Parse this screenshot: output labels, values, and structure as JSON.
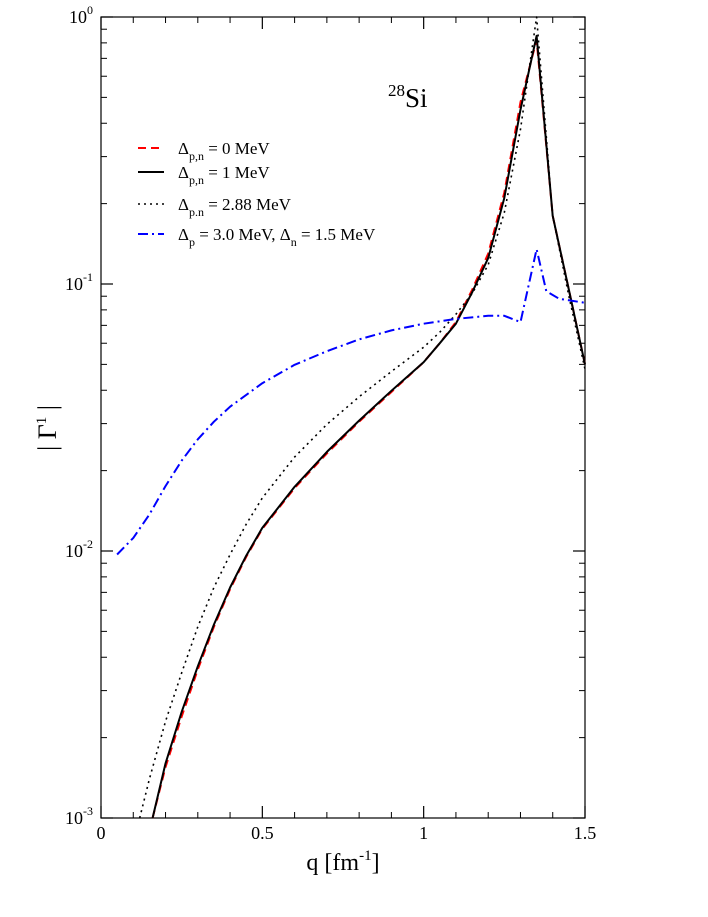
{
  "chart_data": {
    "type": "line",
    "title": "",
    "annotation": {
      "mass": "28",
      "element": "Si"
    },
    "xlabel": {
      "main": "q [fm",
      "sup": "-1",
      "close": "]"
    },
    "ylabel": {
      "main": "| Γ",
      "sup": "1",
      "close": " |"
    },
    "xlim": [
      0,
      1.5
    ],
    "ylim": [
      0.001,
      1
    ],
    "yscale": "log",
    "grid": false,
    "legend_position": "top-left",
    "x_ticks": [
      {
        "value": 0,
        "label": "0"
      },
      {
        "value": 0.5,
        "label": "0.5"
      },
      {
        "value": 1,
        "label": "1"
      },
      {
        "value": 1.5,
        "label": "1.5"
      }
    ],
    "y_ticks": [
      {
        "value": 0.001,
        "base": "10",
        "exp": "-3"
      },
      {
        "value": 0.01,
        "base": "10",
        "exp": "-2"
      },
      {
        "value": 0.1,
        "base": "10",
        "exp": "-1"
      },
      {
        "value": 1,
        "base": "10",
        "exp": "0"
      }
    ],
    "series": [
      {
        "legend": [
          {
            "t": "Δ"
          },
          {
            "t": "p,n",
            "sub": true
          },
          {
            "t": " = 0 MeV"
          }
        ],
        "color": "#ff0000",
        "dash": "8,5",
        "width": 2,
        "x": [
          0.16,
          0.2,
          0.25,
          0.3,
          0.35,
          0.4,
          0.45,
          0.5,
          0.6,
          0.7,
          0.8,
          0.9,
          1.0,
          1.05,
          1.1,
          1.15,
          1.2,
          1.25,
          1.3,
          1.35,
          1.4,
          1.45,
          1.5
        ],
        "y": [
          0.001,
          0.00155,
          0.0024,
          0.0036,
          0.0052,
          0.0072,
          0.0095,
          0.0121,
          0.0172,
          0.0232,
          0.0305,
          0.0394,
          0.051,
          0.06,
          0.072,
          0.095,
          0.13,
          0.22,
          0.48,
          0.82,
          0.18,
          0.095,
          0.05
        ]
      },
      {
        "legend": [
          {
            "t": "Δ"
          },
          {
            "t": "p,n",
            "sub": true
          },
          {
            "t": " = 1 MeV"
          }
        ],
        "color": "#000000",
        "dash": "",
        "width": 2,
        "x": [
          0.16,
          0.2,
          0.25,
          0.3,
          0.35,
          0.4,
          0.45,
          0.5,
          0.6,
          0.7,
          0.8,
          0.9,
          1.0,
          1.05,
          1.1,
          1.15,
          1.2,
          1.25,
          1.3,
          1.35,
          1.4,
          1.45,
          1.5
        ],
        "y": [
          0.001,
          0.0016,
          0.0025,
          0.0037,
          0.0053,
          0.0073,
          0.0096,
          0.0122,
          0.0174,
          0.0235,
          0.0308,
          0.0398,
          0.051,
          0.06,
          0.071,
          0.093,
          0.125,
          0.21,
          0.45,
          0.85,
          0.18,
          0.095,
          0.05
        ]
      },
      {
        "legend": [
          {
            "t": "Δ"
          },
          {
            "t": "p.n",
            "sub": true
          },
          {
            "t": " = 2.88 MeV"
          }
        ],
        "color": "#000000",
        "dash": "2,4",
        "width": 1.6,
        "x": [
          0.12,
          0.15,
          0.2,
          0.25,
          0.3,
          0.35,
          0.4,
          0.45,
          0.5,
          0.6,
          0.7,
          0.8,
          0.9,
          1.0,
          1.05,
          1.1,
          1.15,
          1.2,
          1.25,
          1.3,
          1.35,
          1.4,
          1.45,
          1.5
        ],
        "y": [
          0.001,
          0.0014,
          0.0023,
          0.0035,
          0.0052,
          0.0073,
          0.0097,
          0.0126,
          0.0158,
          0.0225,
          0.0298,
          0.0378,
          0.047,
          0.058,
          0.066,
          0.077,
          0.092,
          0.118,
          0.185,
          0.38,
          1.0,
          0.18,
          0.09,
          0.048
        ]
      },
      {
        "legend": [
          {
            "t": "Δ"
          },
          {
            "t": "p",
            "sub": true
          },
          {
            "t": " = 3.0 MeV,  Δ"
          },
          {
            "t": "n",
            "sub": true
          },
          {
            "t": " = 1.5 MeV"
          }
        ],
        "color": "#0000ff",
        "dash": "10,4,2,4",
        "width": 2,
        "x": [
          0.05,
          0.1,
          0.15,
          0.2,
          0.25,
          0.3,
          0.35,
          0.4,
          0.5,
          0.6,
          0.7,
          0.8,
          0.9,
          1.0,
          1.1,
          1.2,
          1.25,
          1.3,
          1.35,
          1.38,
          1.42,
          1.5
        ],
        "y": [
          0.0097,
          0.0112,
          0.0137,
          0.0175,
          0.0218,
          0.0262,
          0.0305,
          0.0347,
          0.0425,
          0.0498,
          0.056,
          0.062,
          0.067,
          0.071,
          0.074,
          0.076,
          0.076,
          0.072,
          0.135,
          0.094,
          0.088,
          0.085
        ]
      }
    ]
  }
}
